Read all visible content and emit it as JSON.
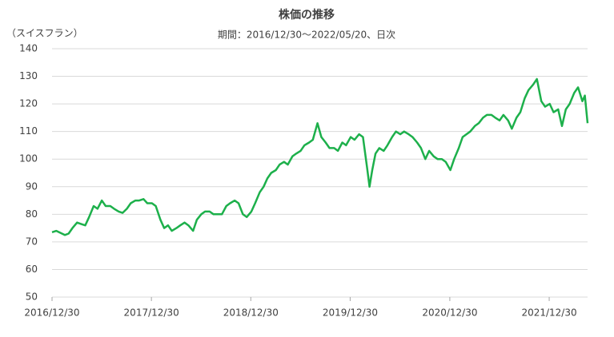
{
  "chart_data": {
    "type": "line",
    "title": "株価の推移",
    "subtitle": "期間：2016/12/30～2022/05/20、日次",
    "y_axis_label": "（スイスフラン）",
    "color": "#1db04b",
    "grid": true,
    "xlim": [
      "2016/12/30",
      "2022/05/20"
    ],
    "xticks": [
      "2016/12/30",
      "2017/12/30",
      "2018/12/30",
      "2019/12/30",
      "2020/12/30",
      "2021/12/30"
    ],
    "ylim": [
      50,
      140
    ],
    "yticks": [
      50,
      60,
      70,
      80,
      90,
      100,
      110,
      120,
      130,
      140
    ],
    "x": [
      "2016/12/30",
      "2017/01/15",
      "2017/02/15",
      "2017/03/01",
      "2017/03/15",
      "2017/04/01",
      "2017/04/15",
      "2017/05/01",
      "2017/05/15",
      "2017/06/01",
      "2017/06/15",
      "2017/07/01",
      "2017/07/15",
      "2017/08/01",
      "2017/08/15",
      "2017/09/01",
      "2017/09/15",
      "2017/10/01",
      "2017/10/15",
      "2017/11/01",
      "2017/11/15",
      "2017/12/01",
      "2017/12/15",
      "2018/01/01",
      "2018/01/15",
      "2018/02/01",
      "2018/02/15",
      "2018/03/01",
      "2018/03/15",
      "2018/04/01",
      "2018/04/15",
      "2018/05/01",
      "2018/05/15",
      "2018/06/01",
      "2018/06/15",
      "2018/07/01",
      "2018/07/15",
      "2018/08/01",
      "2018/08/15",
      "2018/09/01",
      "2018/09/15",
      "2018/10/01",
      "2018/10/15",
      "2018/11/01",
      "2018/11/15",
      "2018/12/01",
      "2018/12/15",
      "2019/01/01",
      "2019/01/15",
      "2019/02/01",
      "2019/02/15",
      "2019/03/01",
      "2019/03/15",
      "2019/04/01",
      "2019/04/15",
      "2019/05/01",
      "2019/05/15",
      "2019/06/01",
      "2019/06/15",
      "2019/07/01",
      "2019/07/15",
      "2019/08/01",
      "2019/08/15",
      "2019/09/01",
      "2019/09/15",
      "2019/10/01",
      "2019/10/15",
      "2019/11/01",
      "2019/11/15",
      "2019/12/01",
      "2019/12/15",
      "2020/01/01",
      "2020/01/15",
      "2020/02/01",
      "2020/02/15",
      "2020/03/01",
      "2020/03/10",
      "2020/03/20",
      "2020/04/01",
      "2020/04/15",
      "2020/05/01",
      "2020/05/15",
      "2020/06/01",
      "2020/06/15",
      "2020/07/01",
      "2020/07/15",
      "2020/08/01",
      "2020/08/15",
      "2020/09/01",
      "2020/09/15",
      "2020/10/01",
      "2020/10/15",
      "2020/11/01",
      "2020/11/15",
      "2020/12/01",
      "2020/12/15",
      "2021/01/01",
      "2021/01/15",
      "2021/02/01",
      "2021/02/15",
      "2021/03/01",
      "2021/03/15",
      "2021/04/01",
      "2021/04/15",
      "2021/05/01",
      "2021/05/15",
      "2021/06/01",
      "2021/06/15",
      "2021/07/01",
      "2021/07/15",
      "2021/08/01",
      "2021/08/15",
      "2021/09/01",
      "2021/09/15",
      "2021/10/01",
      "2021/10/15",
      "2021/11/01",
      "2021/11/15",
      "2021/12/01",
      "2021/12/15",
      "2022/01/01",
      "2022/01/15",
      "2022/02/01",
      "2022/02/15",
      "2022/03/01",
      "2022/03/15",
      "2022/04/01",
      "2022/04/15",
      "2022/05/01",
      "2022/05/10",
      "2022/05/20"
    ],
    "values": [
      73.5,
      74,
      72.5,
      73,
      75,
      77,
      76.5,
      76,
      79,
      83,
      82,
      85,
      83,
      83,
      82,
      81,
      80.5,
      82,
      84,
      85,
      85,
      85.5,
      84,
      84,
      83,
      78,
      75,
      76,
      74,
      75,
      76,
      77,
      76,
      74,
      78,
      80,
      81,
      81,
      80,
      80,
      80,
      83,
      84,
      85,
      84,
      80,
      79,
      81,
      84,
      88,
      90,
      93,
      95,
      96,
      98,
      99,
      98,
      101,
      102,
      103,
      105,
      106,
      107,
      113,
      108,
      106,
      104,
      104,
      103,
      106,
      105,
      108,
      107,
      109,
      108,
      97,
      90,
      96,
      102,
      104,
      103,
      105,
      108,
      110,
      109,
      110,
      109,
      108,
      106,
      104,
      100,
      103,
      101,
      100,
      100,
      99,
      96,
      100,
      104,
      108,
      109,
      110,
      112,
      113,
      115,
      116,
      116,
      115,
      114,
      116,
      114,
      111,
      115,
      117,
      122,
      125,
      127,
      129,
      121,
      119,
      120,
      117,
      118,
      112,
      118,
      120,
      124,
      126,
      121,
      123,
      113
    ]
  }
}
